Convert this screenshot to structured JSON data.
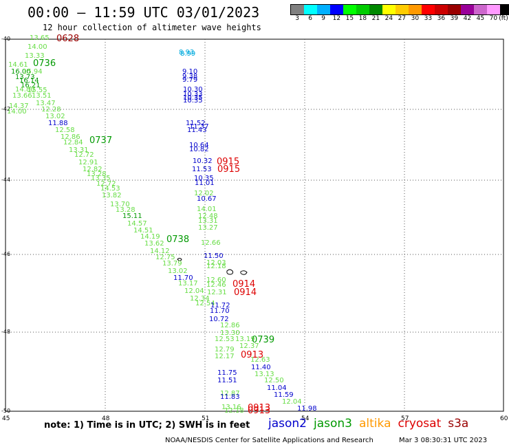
{
  "title": "00:00 – 11:59 UTC 03/01/2023",
  "subtitle": "12 hour collection of altimeter wave heights",
  "colorbar": {
    "colors": [
      "#808080",
      "#00ffff",
      "#00b0ff",
      "#0000ff",
      "#00ff00",
      "#00cc00",
      "#008800",
      "#ffff00",
      "#ffcc00",
      "#ff9900",
      "#ff0000",
      "#cc0000",
      "#990000",
      "#990099",
      "#cc66cc",
      "#ff99ff",
      "#000000"
    ],
    "labels": [
      "3",
      "6",
      "9",
      "12",
      "15",
      "18",
      "21",
      "24",
      "27",
      "30",
      "33",
      "36",
      "39",
      "42",
      "45",
      "70",
      "(ft)"
    ]
  },
  "axes": {
    "lat_ticks": [
      "-40",
      "-42",
      "-44",
      "-46",
      "-48",
      "-50"
    ],
    "lon_ticks": [
      "45",
      "48",
      "51",
      "54",
      "57",
      "60"
    ]
  },
  "satellite_colors": {
    "jason2": "#0000cc",
    "jason3": "#009900",
    "altika": "#ff9900",
    "cryosat": "#dd0000",
    "s3a": "#990000",
    "light": "#66dd44",
    "cyan": "#00aadd"
  },
  "observations": [
    {
      "v": "13.65",
      "c": "light"
    },
    {
      "v": "14.00",
      "c": "light"
    },
    {
      "v": "13.33",
      "c": "light"
    },
    {
      "v": "14.61",
      "c": "light"
    },
    {
      "v": "16.00",
      "c": "jason3"
    },
    {
      "v": "15.94",
      "c": "light"
    },
    {
      "v": "13.73",
      "c": "jason3"
    },
    {
      "v": "16.14",
      "c": "jason3"
    },
    {
      "v": "16.21",
      "c": "jason3"
    },
    {
      "v": "14.80",
      "c": "light"
    },
    {
      "v": "15.55",
      "c": "light"
    },
    {
      "v": "13.66",
      "c": "light"
    },
    {
      "v": "13.51",
      "c": "light"
    },
    {
      "v": "13.47",
      "c": "light"
    },
    {
      "v": "14.37",
      "c": "light"
    },
    {
      "v": "12.28",
      "c": "light"
    },
    {
      "v": "14.00",
      "c": "light"
    },
    {
      "v": "13.02",
      "c": "light"
    },
    {
      "v": "11.88",
      "c": "jason2"
    },
    {
      "v": "12.58",
      "c": "light"
    },
    {
      "v": "12.86",
      "c": "light"
    },
    {
      "v": "12.84",
      "c": "light"
    },
    {
      "v": "13.31",
      "c": "light"
    },
    {
      "v": "12.72",
      "c": "light"
    },
    {
      "v": "12.91",
      "c": "light"
    },
    {
      "v": "12.82",
      "c": "light"
    },
    {
      "v": "13.28",
      "c": "light"
    },
    {
      "v": "13.35",
      "c": "light"
    },
    {
      "v": "12.72",
      "c": "light"
    },
    {
      "v": "14.53",
      "c": "light"
    },
    {
      "v": "13.82",
      "c": "light"
    },
    {
      "v": "13.70",
      "c": "light"
    },
    {
      "v": "13.28",
      "c": "light"
    },
    {
      "v": "15.11",
      "c": "jason3"
    },
    {
      "v": "14.57",
      "c": "light"
    },
    {
      "v": "14.51",
      "c": "light"
    },
    {
      "v": "14.19",
      "c": "light"
    },
    {
      "v": "13.62",
      "c": "light"
    },
    {
      "v": "14.12",
      "c": "light"
    },
    {
      "v": "12.75",
      "c": "light"
    },
    {
      "v": "13.79",
      "c": "light"
    },
    {
      "v": "13.02",
      "c": "light"
    },
    {
      "v": "11.70",
      "c": "jason2"
    },
    {
      "v": "13.17",
      "c": "light"
    },
    {
      "v": "12.04",
      "c": "light"
    },
    {
      "v": "12.34",
      "c": "light"
    },
    {
      "v": "12.54",
      "c": "light"
    },
    {
      "v": "8.93",
      "c": "cyan"
    },
    {
      "v": "8.99",
      "c": "cyan"
    },
    {
      "v": "9.10",
      "c": "jason2"
    },
    {
      "v": "9.38",
      "c": "jason2"
    },
    {
      "v": "9.79",
      "c": "jason2"
    },
    {
      "v": "10.30",
      "c": "jason2"
    },
    {
      "v": "10.33",
      "c": "jason2"
    },
    {
      "v": "10.35",
      "c": "jason2"
    },
    {
      "v": "10.35",
      "c": "jason2"
    },
    {
      "v": "11.52",
      "c": "jason2"
    },
    {
      "v": "11.37",
      "c": "jason2"
    },
    {
      "v": "11.43",
      "c": "jason2"
    },
    {
      "v": "10.64",
      "c": "jason2"
    },
    {
      "v": "10.82",
      "c": "jason2"
    },
    {
      "v": "10.32",
      "c": "jason2"
    },
    {
      "v": "11.53",
      "c": "jason2"
    },
    {
      "v": "10.35",
      "c": "jason2"
    },
    {
      "v": "11.01",
      "c": "jason2"
    },
    {
      "v": "12.02",
      "c": "light"
    },
    {
      "v": "10.67",
      "c": "jason2"
    },
    {
      "v": "14.01",
      "c": "light"
    },
    {
      "v": "12.48",
      "c": "light"
    },
    {
      "v": "13.31",
      "c": "light"
    },
    {
      "v": "13.27",
      "c": "light"
    },
    {
      "v": "12.66",
      "c": "light"
    },
    {
      "v": "11.50",
      "c": "jason2"
    },
    {
      "v": "12.03",
      "c": "light"
    },
    {
      "v": "12.18",
      "c": "light"
    },
    {
      "v": "12.60",
      "c": "light"
    },
    {
      "v": "12.46",
      "c": "light"
    },
    {
      "v": "12.31",
      "c": "light"
    },
    {
      "v": "11.72",
      "c": "jason2"
    },
    {
      "v": "11.70",
      "c": "jason2"
    },
    {
      "v": "10.72",
      "c": "jason2"
    },
    {
      "v": "12.86",
      "c": "light"
    },
    {
      "v": "13.30",
      "c": "light"
    },
    {
      "v": "12.53",
      "c": "light"
    },
    {
      "v": "13.19",
      "c": "light"
    },
    {
      "v": "12.37",
      "c": "light"
    },
    {
      "v": "12.79",
      "c": "light"
    },
    {
      "v": "12.17",
      "c": "light"
    },
    {
      "v": "12.63",
      "c": "light"
    },
    {
      "v": "11.40",
      "c": "jason2"
    },
    {
      "v": "13.13",
      "c": "light"
    },
    {
      "v": "11.75",
      "c": "jason2"
    },
    {
      "v": "11.51",
      "c": "jason2"
    },
    {
      "v": "12.50",
      "c": "light"
    },
    {
      "v": "11.04",
      "c": "jason2"
    },
    {
      "v": "11.59",
      "c": "jason2"
    },
    {
      "v": "12.04",
      "c": "light"
    },
    {
      "v": "11.98",
      "c": "jason2"
    },
    {
      "v": "12.87",
      "c": "light"
    },
    {
      "v": "11.83",
      "c": "jason2"
    },
    {
      "v": "13.16",
      "c": "light"
    },
    {
      "v": "12.18",
      "c": "light"
    }
  ],
  "time_labels": [
    {
      "t": "0628",
      "c": "s3a"
    },
    {
      "t": "0736",
      "c": "jason3"
    },
    {
      "t": "0737",
      "c": "jason3"
    },
    {
      "t": "0738",
      "c": "jason3"
    },
    {
      "t": "0739",
      "c": "jason3"
    },
    {
      "t": "0915",
      "c": "cryosat"
    },
    {
      "t": "0915",
      "c": "cryosat"
    },
    {
      "t": "0914",
      "c": "cryosat"
    },
    {
      "t": "0914",
      "c": "cryosat"
    },
    {
      "t": "0913",
      "c": "cryosat"
    },
    {
      "t": "0913",
      "c": "cryosat"
    },
    {
      "t": "0913",
      "c": "cryosat"
    }
  ],
  "note": "note:  1) Time is in UTC; 2) SWH is in feet",
  "legend": [
    {
      "name": "jason2",
      "color": "#0000cc"
    },
    {
      "name": "jason3",
      "color": "#009900"
    },
    {
      "name": "altika",
      "color": "#ff9900"
    },
    {
      "name": "cryosat",
      "color": "#dd0000"
    },
    {
      "name": "s3a",
      "color": "#990000"
    }
  ],
  "credit": "NOAA/NESDIS Center for Satellite Applications and Research",
  "credit_date": "Mar  3 08:30:31 UTC 2023"
}
